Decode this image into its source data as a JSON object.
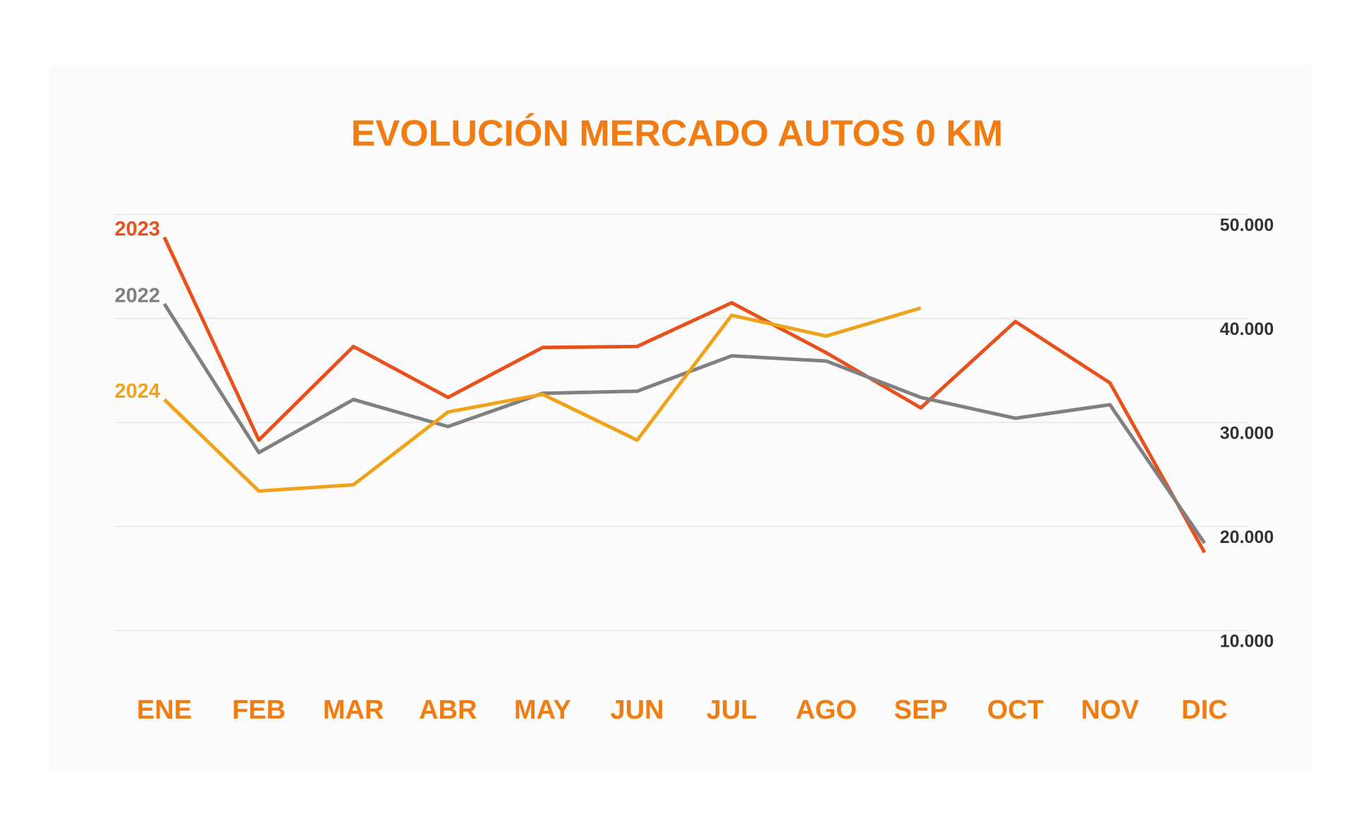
{
  "chart_data": {
    "type": "line",
    "title": "EVOLUCIÓN MERCADO AUTOS 0 KM",
    "categories": [
      "ENE",
      "FEB",
      "MAR",
      "ABR",
      "MAY",
      "JUN",
      "JUL",
      "AGO",
      "SEP",
      "OCT",
      "NOV",
      "DIC"
    ],
    "series": [
      {
        "name": "2023",
        "color": "#e8501c",
        "values": [
          47800,
          28300,
          37300,
          32400,
          37200,
          37300,
          41500,
          36700,
          31400,
          39700,
          33800,
          17500
        ]
      },
      {
        "name": "2022",
        "color": "#808080",
        "values": [
          41400,
          27100,
          32200,
          29600,
          32800,
          33000,
          36400,
          35900,
          32400,
          30400,
          31700,
          18400
        ]
      },
      {
        "name": "2024",
        "color": "#f0a21a",
        "values": [
          32200,
          23400,
          24000,
          31000,
          32700,
          28300,
          40300,
          38300,
          41000,
          null,
          null,
          null
        ]
      }
    ],
    "ylim": [
      10000,
      50000
    ],
    "yticks": [
      {
        "value": 10000,
        "label": "10.000"
      },
      {
        "value": 20000,
        "label": "20.000"
      },
      {
        "value": 30000,
        "label": "30.000"
      },
      {
        "value": 40000,
        "label": "40.000"
      },
      {
        "value": 50000,
        "label": "50.000"
      }
    ],
    "grid": true
  }
}
